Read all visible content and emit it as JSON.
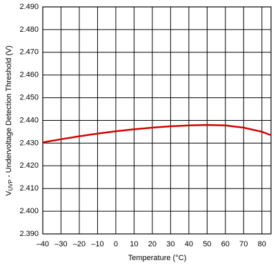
{
  "chart_data": {
    "type": "line",
    "x_label": "Temperature (°C)",
    "y_label": {
      "main": "V",
      "sub": "UVP",
      "rest": " - Undervoltage Detection Threshold (V)"
    },
    "x": [
      -40,
      -30,
      -20,
      -10,
      0,
      10,
      20,
      30,
      40,
      50,
      60,
      70,
      80,
      85
    ],
    "series": [
      {
        "name": "VUVP",
        "color": "#d40000",
        "values": [
          2.4303,
          2.4317,
          2.433,
          2.4342,
          2.4352,
          2.4361,
          2.4368,
          2.4374,
          2.4378,
          2.438,
          2.4378,
          2.4368,
          2.435,
          2.4335
        ]
      }
    ],
    "xlim": [
      -40,
      85
    ],
    "ylim": [
      2.39,
      2.49
    ],
    "xticks": [
      {
        "value": -40,
        "label": "–40"
      },
      {
        "value": -30,
        "label": "–30"
      },
      {
        "value": -20,
        "label": "–20"
      },
      {
        "value": -10,
        "label": "–10"
      },
      0,
      10,
      20,
      30,
      40,
      50,
      60,
      70,
      80
    ],
    "yticks": [
      {
        "value": 2.39,
        "label": "2.390"
      },
      {
        "value": 2.4,
        "label": "2.400"
      },
      {
        "value": 2.41,
        "label": "2.410"
      },
      {
        "value": 2.42,
        "label": "2.420"
      },
      {
        "value": 2.43,
        "label": "2.430"
      },
      {
        "value": 2.44,
        "label": "2.440"
      },
      {
        "value": 2.45,
        "label": "2.450"
      },
      {
        "value": 2.46,
        "label": "2.460"
      },
      {
        "value": 2.47,
        "label": "2.470"
      },
      {
        "value": 2.48,
        "label": "2.480"
      },
      {
        "value": 2.49,
        "label": "2.490"
      }
    ],
    "grid": true
  }
}
